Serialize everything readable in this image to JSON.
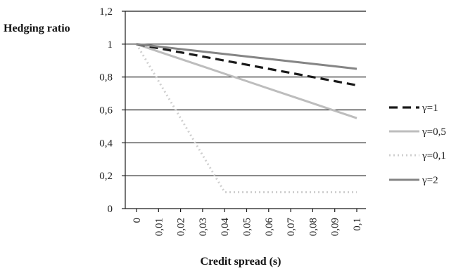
{
  "chart_data": {
    "type": "line",
    "title": "",
    "ylabel": "Hedging ratio",
    "xlabel": "Credit spread (s)",
    "ylim": [
      0,
      1.2
    ],
    "y_ticks": [
      "0",
      "0,2",
      "0,4",
      "0,6",
      "0,8",
      "1",
      "1,2"
    ],
    "y_tick_values": [
      0,
      0.2,
      0.4,
      0.6,
      0.8,
      1.0,
      1.2
    ],
    "x_tick_labels": [
      "0",
      "0,01",
      "0,02",
      "0,03",
      "0,04",
      "0,05",
      "0,06",
      "0,07",
      "0,08",
      "0,09",
      "0,1"
    ],
    "grid": "horizontal",
    "legend_position": "right",
    "series": [
      {
        "name": "γ=1",
        "style": "dashed",
        "color": "#1a1a1a",
        "values": [
          1.0,
          0.975,
          0.95,
          0.925,
          0.9,
          0.875,
          0.85,
          0.825,
          0.8,
          0.775,
          0.75
        ]
      },
      {
        "name": "γ=0,5",
        "style": "solid",
        "color": "#bdbdbd",
        "values": [
          1.0,
          0.955,
          0.91,
          0.865,
          0.82,
          0.775,
          0.73,
          0.685,
          0.64,
          0.595,
          0.55
        ]
      },
      {
        "name": "γ=0,1",
        "style": "dotted",
        "color": "#cfcfcf",
        "values": [
          1.0,
          0.775,
          0.55,
          0.325,
          0.1,
          0.1,
          0.1,
          0.1,
          0.1,
          0.1,
          0.1
        ]
      },
      {
        "name": "γ=2",
        "style": "solid",
        "color": "#858585",
        "values": [
          1.0,
          0.985,
          0.97,
          0.955,
          0.94,
          0.925,
          0.91,
          0.895,
          0.88,
          0.865,
          0.85
        ]
      }
    ]
  }
}
